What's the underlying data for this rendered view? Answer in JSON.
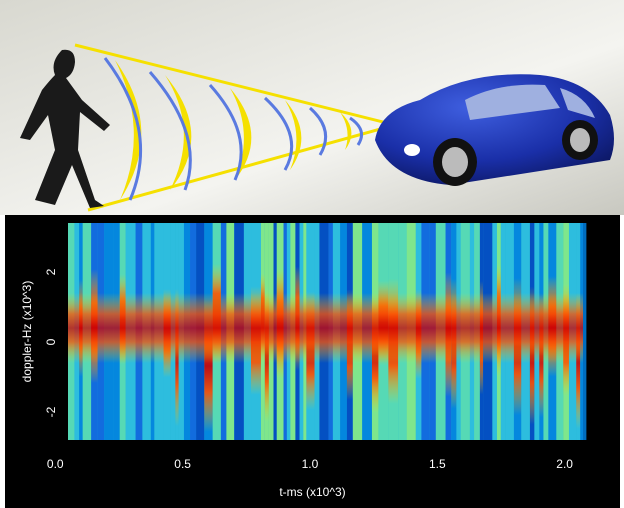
{
  "chart_data": {
    "type": "spectrogram",
    "x_label": "t-ms (x10^3)",
    "y_label": "doppler-Hz (x10^3)",
    "xlim": [
      -0.06,
      2.08
    ],
    "xticks": [
      {
        "value": 0,
        "label": "0.0"
      },
      0.5,
      {
        "value": 1,
        "label": "1.0"
      },
      1.5,
      {
        "value": 2,
        "label": "2.0"
      }
    ],
    "ylim": [
      -2.8,
      3.4
    ],
    "yticks": [
      2,
      0,
      -2
    ]
  }
}
